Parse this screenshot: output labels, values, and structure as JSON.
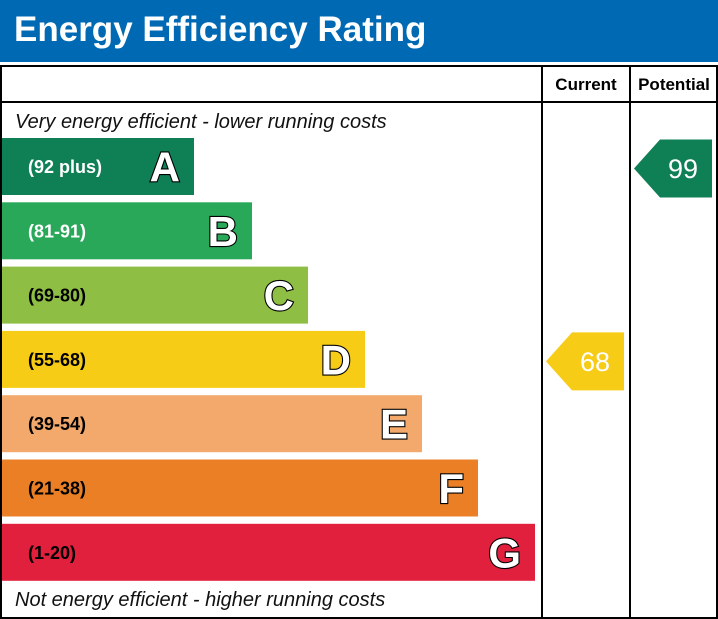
{
  "title": "Energy Efficiency Rating",
  "columns": {
    "current": "Current",
    "potential": "Potential"
  },
  "notes": {
    "top": "Very energy efficient - lower running costs",
    "bottom": "Not energy efficient - higher running costs"
  },
  "chart_data": {
    "type": "bar",
    "title": "Energy Efficiency Rating",
    "categories": [
      "A",
      "B",
      "C",
      "D",
      "E",
      "F",
      "G"
    ],
    "ranges": [
      "(92 plus)",
      "(81-91)",
      "(69-80)",
      "(55-68)",
      "(39-54)",
      "(21-38)",
      "(1-20)"
    ],
    "range_min": [
      92,
      81,
      69,
      55,
      39,
      21,
      1
    ],
    "colors": [
      "#0f7f56",
      "#2aa85a",
      "#8fbe44",
      "#f7cc16",
      "#f2a96b",
      "#ea7f26",
      "#e1203d"
    ],
    "current": {
      "value": 68,
      "band": "D",
      "color": "#f7cc16"
    },
    "potential": {
      "value": 99,
      "band": "A",
      "color": "#0f7f56"
    }
  }
}
